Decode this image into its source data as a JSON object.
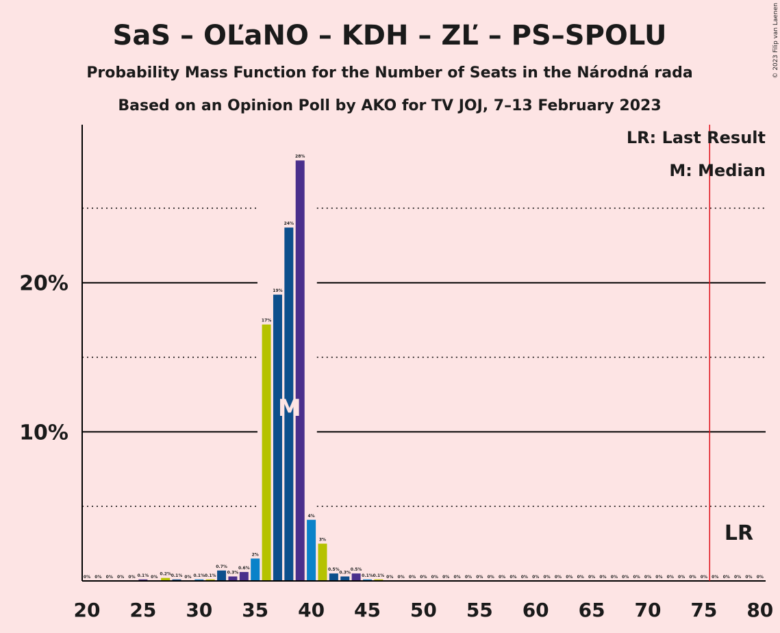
{
  "title": "SaS – OĽaNO – KDH – ZĽ – PS–SPOLU",
  "subtitle1": "Probability Mass Function for the Number of Seats in the Národná rada",
  "subtitle2": "Based on an Opinion Poll by AKO for TV JOJ, 7–13 February 2023",
  "copyright": "© 2023 Filip van Laenen",
  "legend": {
    "last_result": "LR: Last Result",
    "median": "M: Median"
  },
  "markers": {
    "median_label": "M",
    "lr_label": "LR"
  },
  "colors": {
    "background": "#fde4e4",
    "palette": [
      "#0d4f8c",
      "#4a2f8c",
      "#0a82c9",
      "#b5c200"
    ],
    "last_result_line": "#e0101a"
  },
  "chart_data": {
    "type": "bar",
    "x": [
      20,
      21,
      22,
      23,
      24,
      25,
      26,
      27,
      28,
      29,
      30,
      31,
      32,
      33,
      34,
      35,
      36,
      37,
      38,
      39,
      40,
      41,
      42,
      43,
      44,
      45,
      46,
      47,
      48,
      49,
      50,
      51,
      52,
      53,
      54,
      55,
      56,
      57,
      58,
      59,
      60,
      61,
      62,
      63,
      64,
      65,
      66,
      67,
      68,
      69,
      70,
      71,
      72,
      73,
      74,
      75,
      76,
      77,
      78,
      79,
      80
    ],
    "values": [
      0,
      0,
      0,
      0,
      0,
      0.1,
      0,
      0.2,
      0.1,
      0,
      0.1,
      0.1,
      0.7,
      0.3,
      0.6,
      1.5,
      17.2,
      19.2,
      23.7,
      28.2,
      4.1,
      2.5,
      0.5,
      0.3,
      0.5,
      0.1,
      0.1,
      0,
      0,
      0,
      0,
      0,
      0,
      0,
      0,
      0,
      0,
      0,
      0,
      0,
      0,
      0,
      0,
      0,
      0,
      0,
      0,
      0,
      0,
      0,
      0,
      0,
      0,
      0,
      0,
      0,
      0,
      0,
      0,
      0,
      0
    ],
    "value_labels": [
      "0%",
      "0%",
      "0%",
      "0%",
      "0%",
      "0.1%",
      "0%",
      "0.2%",
      "0.1%",
      "0%",
      "0.1%",
      "0.1%",
      "0.7%",
      "0.3%",
      "0.6%",
      "2%",
      "17%",
      "19%",
      "24%",
      "28%",
      "4%",
      "3%",
      "0.5%",
      "0.3%",
      "0.5%",
      "0.1%",
      "0.1%",
      "0%",
      "0%",
      "0%",
      "0%",
      "0%",
      "0%",
      "0%",
      "0%",
      "0%",
      "0%",
      "0%",
      "0%",
      "0%",
      "0%",
      "0%",
      "0%",
      "0%",
      "0%",
      "0%",
      "0%",
      "0%",
      "0%",
      "0%",
      "0%",
      "0%",
      "0%",
      "0%",
      "0%",
      "0%",
      "0%",
      "0%",
      "0%",
      "0%",
      "0%"
    ],
    "colors": [
      "#0d4f8c",
      "#4a2f8c",
      "#0a82c9",
      "#b5c200",
      "#0d4f8c",
      "#4a2f8c",
      "#0a82c9",
      "#b5c200",
      "#0d4f8c",
      "#4a2f8c",
      "#0a82c9",
      "#b5c200",
      "#0d4f8c",
      "#4a2f8c",
      "#4a2f8c",
      "#0a82c9",
      "#b5c200",
      "#0d4f8c",
      "#0d4f8c",
      "#4a2f8c",
      "#0a82c9",
      "#b5c200",
      "#0d4f8c",
      "#0d4f8c",
      "#4a2f8c",
      "#0a82c9",
      "#b5c200",
      "#0d4f8c",
      "#4a2f8c",
      "#0a82c9",
      "#b5c200",
      "#0d4f8c",
      "#4a2f8c",
      "#0a82c9",
      "#b5c200",
      "#0d4f8c",
      "#4a2f8c",
      "#0a82c9",
      "#b5c200",
      "#0d4f8c",
      "#4a2f8c",
      "#0a82c9",
      "#b5c200",
      "#0d4f8c",
      "#4a2f8c",
      "#0a82c9",
      "#b5c200",
      "#0d4f8c",
      "#4a2f8c",
      "#0a82c9",
      "#b5c200",
      "#0d4f8c",
      "#4a2f8c",
      "#0a82c9",
      "#b5c200",
      "#0d4f8c",
      "#4a2f8c",
      "#0a82c9",
      "#b5c200",
      "#0d4f8c",
      "#4a2f8c"
    ],
    "x_ticks": [
      20,
      25,
      30,
      35,
      40,
      45,
      50,
      55,
      60,
      65,
      70,
      75,
      80
    ],
    "y_ticks": [
      10,
      20
    ],
    "y_tick_labels": [
      "10%",
      "20%"
    ],
    "y_dotted_gridlines": [
      5,
      15,
      25
    ],
    "xlim": [
      20,
      80
    ],
    "ylim": [
      0,
      30.6
    ],
    "median": 38,
    "last_result": 76
  }
}
